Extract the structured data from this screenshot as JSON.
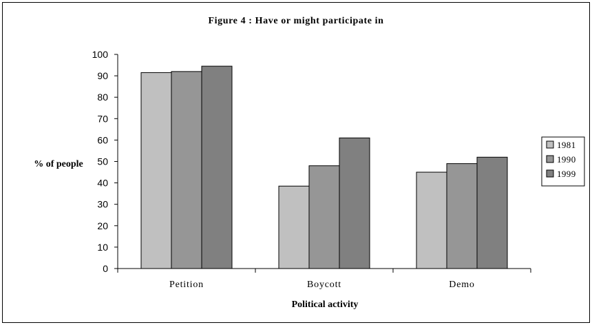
{
  "chart_data": {
    "type": "bar",
    "title": "Figure 4 : Have or might participate in",
    "xlabel": "Political activity",
    "ylabel": "% of people",
    "ylim": [
      0,
      100
    ],
    "yticks": [
      "0",
      "10",
      "20",
      "30",
      "40",
      "50",
      "60",
      "70",
      "80",
      "90",
      "100"
    ],
    "categories": [
      "Petition",
      "Boycott",
      "Demo"
    ],
    "series": [
      {
        "name": "1981",
        "values": [
          91.5,
          38.5,
          45
        ],
        "color": "#c0c0c0"
      },
      {
        "name": "1990",
        "values": [
          92,
          48,
          49
        ],
        "color": "#969696"
      },
      {
        "name": "1999",
        "values": [
          94.5,
          61,
          52
        ],
        "color": "#808080"
      }
    ],
    "grid": false,
    "legend_position": "right"
  }
}
